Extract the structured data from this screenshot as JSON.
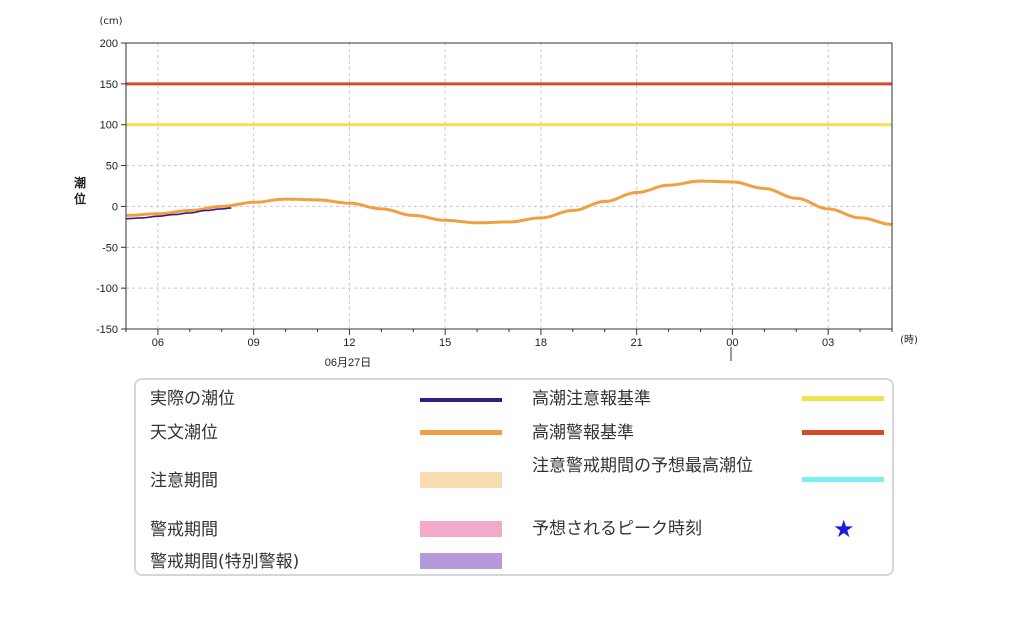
{
  "chart_data": {
    "type": "line",
    "ylabel": "潮位",
    "yunit": "(cm)",
    "xunit": "(時)",
    "date_label": "06月27日",
    "ylim": [
      -150,
      200
    ],
    "yticks": [
      200,
      150,
      100,
      50,
      0,
      -50,
      -100,
      -150
    ],
    "x_hours_range": [
      5.0,
      29.0
    ],
    "xticks": [
      {
        "h": 6,
        "label": "06"
      },
      {
        "h": 9,
        "label": "09"
      },
      {
        "h": 12,
        "label": "12"
      },
      {
        "h": 15,
        "label": "15"
      },
      {
        "h": 18,
        "label": "18"
      },
      {
        "h": 21,
        "label": "21"
      },
      {
        "h": 24,
        "label": "00"
      },
      {
        "h": 27,
        "label": "03"
      }
    ],
    "grid": true,
    "reference_lines": [
      {
        "name": "高潮警報基準",
        "value": 150,
        "color": "#d64a2c"
      },
      {
        "name": "高潮注意報基準",
        "value": 100,
        "color": "#f0e24a"
      }
    ],
    "series": [
      {
        "name": "天文潮位",
        "color": "#f0a040",
        "x": [
          5.0,
          6.0,
          7.0,
          8.0,
          9.0,
          10.0,
          11.0,
          12.0,
          13.0,
          14.0,
          15.0,
          16.0,
          17.0,
          18.0,
          19.0,
          20.0,
          21.0,
          22.0,
          23.0,
          24.0,
          25.0,
          26.0,
          27.0,
          28.0,
          29.0
        ],
        "y": [
          -11,
          -9,
          -5,
          0,
          5,
          9,
          8,
          4,
          -3,
          -11,
          -17,
          -20,
          -19,
          -14,
          -5,
          6,
          17,
          26,
          31,
          30,
          22,
          10,
          -3,
          -14,
          -22
        ]
      },
      {
        "name": "実際の潮位",
        "color": "#3a1a8a",
        "x": [
          5.0,
          5.5,
          6.0,
          6.5,
          7.0,
          7.5,
          8.0,
          8.3
        ],
        "y": [
          -15,
          -14,
          -12,
          -10,
          -8,
          -5,
          -3,
          -2
        ]
      }
    ]
  },
  "legend": {
    "actual": "実際の潮位",
    "astronomical": "天文潮位",
    "caution_period": "注意期間",
    "warning_period": "警戒期間",
    "special_warning_period": "警戒期間(特別警報)",
    "storm_surge_advisory": "高潮注意報基準",
    "storm_surge_warning": "高潮警報基準",
    "forecast_max": "注意警戒期間の予想最高潮位",
    "peak_time": "予想されるピーク時刻",
    "star": "★",
    "colors": {
      "actual": "#3a1a8a",
      "astronomical": "#f0a040",
      "caution_period": "#f8dcb0",
      "warning_period": "#f2aac8",
      "special_warning_period": "#b49ad8",
      "storm_surge_advisory": "#f0e24a",
      "storm_surge_warning": "#d64a2c",
      "forecast_max": "#7af0f4",
      "peak_time": "#1a1ad8"
    }
  }
}
